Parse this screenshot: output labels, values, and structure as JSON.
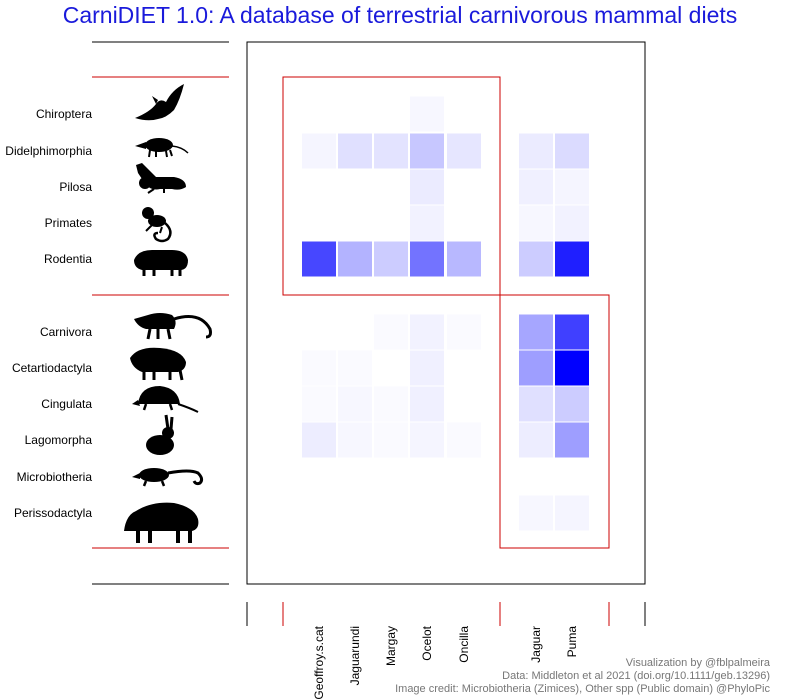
{
  "title": "CarniDIET 1.0: A database of terrestrial carnivorous mammal diets",
  "credits": [
    "Visualization by @fblpalmeira",
    "Data: Middleton et al 2021 (doi.org/10.1111/geb.13296)",
    "Image credit: Microbiotheria (Zimices), Other spp (Public domain) @PhyloPic"
  ],
  "colors": {
    "title": "#1a1adb",
    "low": "#ffffff",
    "high": "#0000ff",
    "group_lines": "#cc0000",
    "frame": "#000000",
    "credit_text": "#777777",
    "silhouette": "#000000"
  },
  "chart_data": {
    "type": "heatmap",
    "title": "CarniDIET 1.0: A database of terrestrial carnivorous mammal diets",
    "rows": [
      "Chiroptera",
      "Didelphimorphia",
      "Pilosa",
      "Primates",
      "Rodentia",
      "Carnivora",
      "Cetartiodactyla",
      "Cingulata",
      "Lagomorpha",
      "Microbiotheria",
      "Perissodactyla"
    ],
    "columns": [
      "Geoffroy.s.cat",
      "Jaguarundi",
      "Margay",
      "Ocelot",
      "Oncilla",
      "Jaguar",
      "Puma"
    ],
    "row_groups": [
      {
        "rows": [
          "Chiroptera",
          "Didelphimorphia",
          "Pilosa",
          "Primates",
          "Rodentia"
        ]
      },
      {
        "rows": [
          "Carnivora",
          "Cetartiodactyla",
          "Cingulata",
          "Lagomorpha",
          "Microbiotheria",
          "Perissodactyla"
        ]
      }
    ],
    "column_groups": [
      {
        "columns": [
          "Geoffroy.s.cat",
          "Jaguarundi",
          "Margay",
          "Ocelot",
          "Oncilla"
        ]
      },
      {
        "columns": [
          "Jaguar",
          "Puma"
        ]
      }
    ],
    "values": [
      [
        0,
        0,
        0,
        0.03,
        0,
        0,
        0
      ],
      [
        0.04,
        0.12,
        0.11,
        0.22,
        0.1,
        0.08,
        0.14
      ],
      [
        0,
        0,
        0,
        0.08,
        0,
        0.06,
        0.04
      ],
      [
        0,
        0,
        0,
        0.05,
        0,
        0.03,
        0.05
      ],
      [
        0.72,
        0.3,
        0.2,
        0.55,
        0.28,
        0.2,
        0.88
      ],
      [
        0,
        0,
        0.02,
        0.05,
        0.02,
        0.35,
        0.75
      ],
      [
        0.02,
        0.02,
        0,
        0.06,
        0,
        0.38,
        1.0
      ],
      [
        0.02,
        0.03,
        0.02,
        0.06,
        0,
        0.12,
        0.2
      ],
      [
        0.07,
        0.03,
        0.02,
        0.04,
        0.02,
        0.07,
        0.38
      ],
      [
        0,
        0,
        0,
        0,
        0,
        0,
        0
      ],
      [
        0,
        0,
        0,
        0,
        0,
        0.03,
        0.04
      ]
    ],
    "value_range": [
      0,
      1
    ],
    "grid": false,
    "legend": "none"
  }
}
